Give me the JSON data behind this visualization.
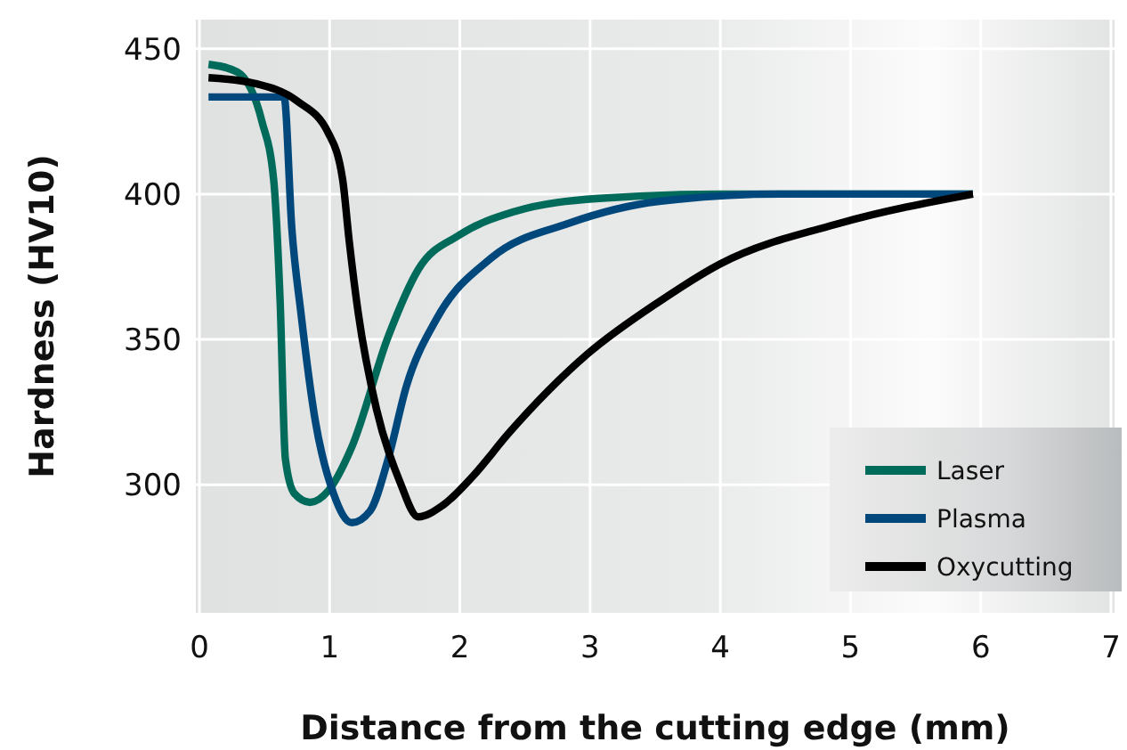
{
  "chart_data": {
    "type": "line",
    "xlabel": "Distance from the cutting edge (mm)",
    "ylabel": "Hardness (HV10)",
    "xlim": [
      0,
      7
    ],
    "xticks": [
      0,
      1,
      2,
      3,
      4,
      5,
      6,
      7
    ],
    "ylim": [
      256,
      460
    ],
    "yticks": [
      300,
      350,
      400,
      450
    ],
    "grid": true,
    "legend": "bottom right",
    "line_style": "solid",
    "marker": "none",
    "series": [
      {
        "name": "Laser",
        "color": "#006b5b",
        "x": [
          0.07,
          0.29,
          0.48,
          0.57,
          0.62,
          0.66,
          0.73,
          0.85,
          0.99,
          1.17,
          1.45,
          1.68,
          2.0,
          2.42,
          3.07,
          4.0,
          5.94
        ],
        "values": [
          444.6,
          442,
          425,
          405,
          363,
          309,
          297,
          294,
          298,
          313,
          351,
          374,
          386,
          394,
          398.5,
          400,
          400
        ]
      },
      {
        "name": "Plasma",
        "color": "#00487c",
        "x": [
          0.07,
          0.65,
          0.71,
          0.78,
          0.89,
          1.03,
          1.17,
          1.31,
          1.45,
          1.59,
          1.82,
          2.24,
          2.84,
          3.53,
          4.46,
          5.94
        ],
        "values": [
          433.4,
          433.4,
          388,
          359,
          322,
          297,
          287,
          291,
          309,
          334,
          357,
          378,
          390,
          397.5,
          400,
          400
        ]
      },
      {
        "name": "Oxycutting",
        "color": "#000000",
        "x": [
          0.07,
          0.43,
          0.75,
          0.99,
          1.1,
          1.15,
          1.22,
          1.36,
          1.54,
          1.68,
          1.87,
          2.1,
          2.38,
          2.98,
          3.53,
          4.0,
          4.92,
          5.94
        ],
        "values": [
          440,
          438,
          432,
          421,
          405,
          384,
          359,
          326,
          301,
          289,
          293,
          303,
          318,
          345,
          363,
          376,
          390,
          400
        ]
      }
    ]
  }
}
